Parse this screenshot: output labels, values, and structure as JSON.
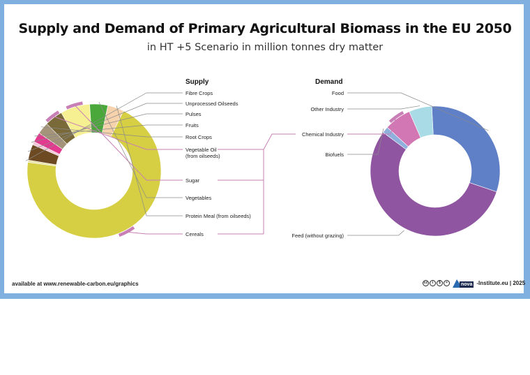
{
  "title": "Supply and Demand of Primary Agricultural Biomass in the EU 2050",
  "subtitle": "in HT +5 Scenario in million tonnes dry matter",
  "footer": {
    "source": "available at www.renewable-carbon.eu/graphics",
    "credit": "-Institute.eu | 2025",
    "logo_text": "nova",
    "license_icon": "creative-commons-icon"
  },
  "colors": {
    "frame": "#7fb0e0",
    "leader_line": "#c77fb5",
    "highlight": "#c77fb5"
  },
  "chart_data": [
    {
      "type": "pie",
      "title": "Supply",
      "donut": true,
      "categories": [
        "Cereals",
        "Fibre Crops",
        "Unprocessed Oilseeds",
        "Pulses",
        "Fruits",
        "Root Crops",
        "Vegetable Oil\n(from oilseeds)",
        "Sugar",
        "Vegetables",
        "Protein Meal (from oilseeds)"
      ],
      "values": [
        64.0,
        0.5,
        3.5,
        0.7,
        2.2,
        2.6,
        4.0,
        6.5,
        4.0,
        3.6
      ],
      "colors": [
        "#d6cf43",
        "#e8e1a8",
        "#6e4a22",
        "#f0c8d8",
        "#e23a8f",
        "#a4947a",
        "#7a6a3a",
        "#f7f093",
        "#4aa83a",
        "#f6d3ad"
      ],
      "highlighted": [
        "Cereals",
        "Vegetable Oil\n(from oilseeds)",
        "Sugar"
      ]
    },
    {
      "type": "pie",
      "title": "Demand",
      "donut": true,
      "categories": [
        "Food",
        "Feed (without grazing)",
        "Biofuels",
        "Chemical Industry",
        "Other Industry"
      ],
      "values": [
        31.0,
        55.0,
        1.6,
        6.7,
        5.7
      ],
      "colors": [
        "#5f7fc6",
        "#8f55a0",
        "#8fb0dc",
        "#d277b3",
        "#a9dbe6"
      ],
      "highlighted": [
        "Chemical Industry"
      ]
    }
  ]
}
